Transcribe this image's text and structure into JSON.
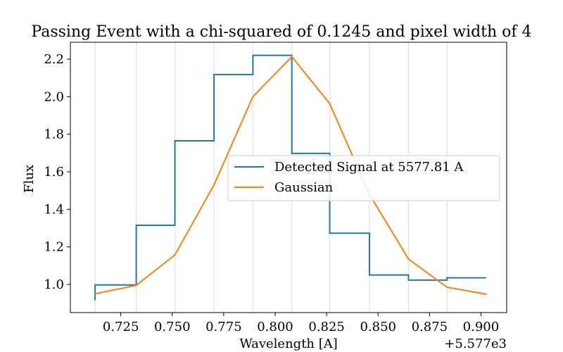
{
  "chart_data": {
    "type": "line",
    "title": "Passing Event with a chi-squared of 0.1245 and pixel width of 4",
    "xlabel": "Wavelength [A]",
    "ylabel": "Flux",
    "x_offset_label": "+5.577e3",
    "xlim": [
      0.7005,
      0.9125
    ],
    "ylim": [
      0.85,
      2.29
    ],
    "x_ticks": [
      0.725,
      0.75,
      0.775,
      0.8,
      0.825,
      0.85,
      0.875,
      0.9
    ],
    "x_tick_labels": [
      "0.725",
      "0.750",
      "0.775",
      "0.800",
      "0.825",
      "0.850",
      "0.875",
      "0.900"
    ],
    "y_ticks": [
      1.0,
      1.2,
      1.4,
      1.6,
      1.8,
      2.0,
      2.2
    ],
    "y_tick_labels": [
      "1.0",
      "1.2",
      "1.4",
      "1.6",
      "1.8",
      "2.0",
      "2.2"
    ],
    "grid": "vertical lines at pixel edges",
    "grid_x": [
      0.7125,
      0.7325,
      0.7513,
      0.7703,
      0.7892,
      0.8081,
      0.8265,
      0.8458,
      0.8648,
      0.8835
    ],
    "legend_position": "center-right",
    "series": [
      {
        "name": "Detected Signal at 5577.81 A",
        "color": "#1f77b4",
        "style": "step",
        "steps": [
          {
            "x_start": 0.7125,
            "x_end": 0.7325,
            "y": 0.997
          },
          {
            "x_start": 0.7325,
            "x_end": 0.7513,
            "y": 1.315
          },
          {
            "x_start": 0.7513,
            "x_end": 0.7703,
            "y": 1.765
          },
          {
            "x_start": 0.7703,
            "x_end": 0.7892,
            "y": 2.118
          },
          {
            "x_start": 0.7892,
            "x_end": 0.8081,
            "y": 2.22
          },
          {
            "x_start": 0.8081,
            "x_end": 0.8265,
            "y": 1.698
          },
          {
            "x_start": 0.8265,
            "x_end": 0.8458,
            "y": 1.273
          },
          {
            "x_start": 0.8458,
            "x_end": 0.8648,
            "y": 1.05
          },
          {
            "x_start": 0.8648,
            "x_end": 0.8835,
            "y": 1.023
          },
          {
            "x_start": 0.8835,
            "x_end": 0.9025,
            "y": 1.035
          }
        ],
        "start_y": 0.915
      },
      {
        "name": "Gaussian",
        "color": "#ff7f0e",
        "style": "line",
        "x": [
          0.7125,
          0.7325,
          0.7513,
          0.7703,
          0.7892,
          0.8081,
          0.8265,
          0.8458,
          0.8648,
          0.8835,
          0.9025
        ],
        "y": [
          0.95,
          0.995,
          1.157,
          1.53,
          2.0,
          2.213,
          1.963,
          1.48,
          1.135,
          0.985,
          0.948
        ]
      }
    ]
  }
}
